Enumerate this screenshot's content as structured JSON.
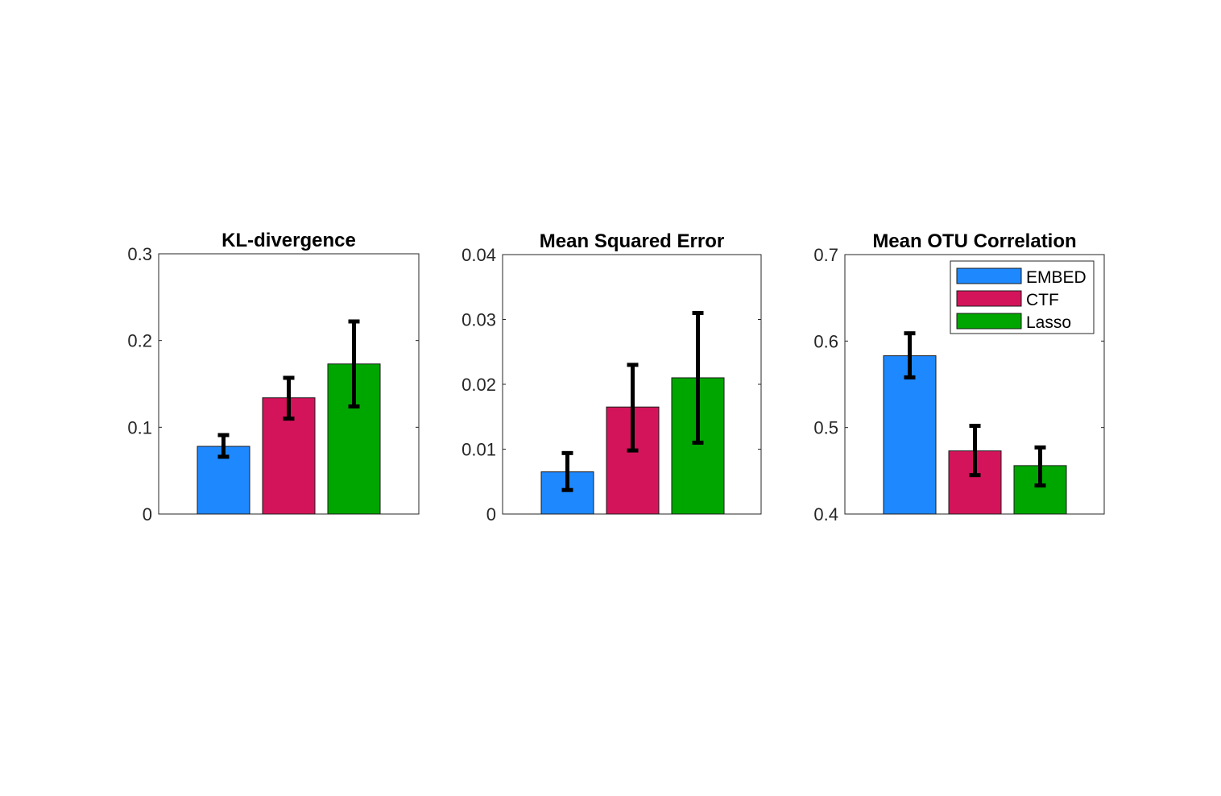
{
  "chart_data": [
    {
      "type": "bar",
      "title": "KL-divergence",
      "xlabel": "",
      "ylabel": "",
      "ylim": [
        0,
        0.3
      ],
      "yticks": [
        0,
        0.1,
        0.2,
        0.3
      ],
      "ytick_labels": [
        "0",
        "0.1",
        "0.2",
        "0.3"
      ],
      "series": [
        {
          "name": "EMBED",
          "value": 0.078,
          "err_low": 0.066,
          "err_high": 0.091
        },
        {
          "name": "CTF",
          "value": 0.134,
          "err_low": 0.11,
          "err_high": 0.157
        },
        {
          "name": "Lasso",
          "value": 0.173,
          "err_low": 0.124,
          "err_high": 0.222
        }
      ],
      "legend": false
    },
    {
      "type": "bar",
      "title": "Mean Squared Error",
      "xlabel": "",
      "ylabel": "",
      "ylim": [
        0,
        0.04
      ],
      "yticks": [
        0,
        0.01,
        0.02,
        0.03,
        0.04
      ],
      "ytick_labels": [
        "0",
        "0.01",
        "0.02",
        "0.03",
        "0.04"
      ],
      "series": [
        {
          "name": "EMBED",
          "value": 0.0065,
          "err_low": 0.0037,
          "err_high": 0.0094
        },
        {
          "name": "CTF",
          "value": 0.0165,
          "err_low": 0.0098,
          "err_high": 0.023
        },
        {
          "name": "Lasso",
          "value": 0.021,
          "err_low": 0.011,
          "err_high": 0.031
        }
      ],
      "legend": false
    },
    {
      "type": "bar",
      "title": "Mean OTU Correlation",
      "xlabel": "",
      "ylabel": "",
      "ylim": [
        0.4,
        0.7
      ],
      "yticks": [
        0.4,
        0.5,
        0.6,
        0.7
      ],
      "ytick_labels": [
        "0.4",
        "0.5",
        "0.6",
        "0.7"
      ],
      "series": [
        {
          "name": "EMBED",
          "value": 0.583,
          "err_low": 0.558,
          "err_high": 0.609
        },
        {
          "name": "CTF",
          "value": 0.473,
          "err_low": 0.445,
          "err_high": 0.502
        },
        {
          "name": "Lasso",
          "value": 0.456,
          "err_low": 0.433,
          "err_high": 0.477
        }
      ],
      "legend": true,
      "legend_position": "top-right"
    }
  ],
  "series_colors": {
    "EMBED": "#1e88ff",
    "CTF": "#d4145a",
    "Lasso": "#00a600"
  }
}
